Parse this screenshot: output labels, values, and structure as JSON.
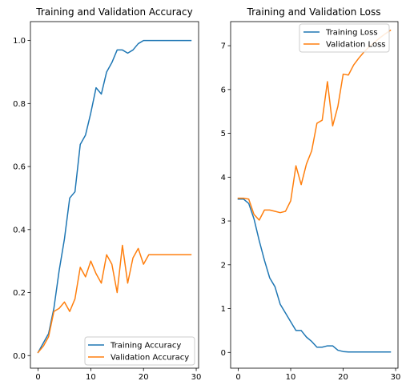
{
  "chart_data": [
    {
      "type": "line",
      "title": "Training and Validation Accuracy",
      "xlabel": "",
      "ylabel": "",
      "xlim": [
        -1.45,
        30.45
      ],
      "ylim": [
        -0.04,
        1.06
      ],
      "xticks": [
        "0",
        "10",
        "20",
        "30"
      ],
      "yticks": [
        "0.0",
        "0.2",
        "0.4",
        "0.6",
        "0.8",
        "1.0"
      ],
      "legend_position": "lower-right",
      "x": [
        0,
        1,
        2,
        3,
        4,
        5,
        6,
        7,
        8,
        9,
        10,
        11,
        12,
        13,
        14,
        15,
        16,
        17,
        18,
        19,
        20,
        21,
        22,
        23,
        24,
        25,
        26,
        27,
        28,
        29
      ],
      "series": [
        {
          "name": "Training Accuracy",
          "color": "#1f77b4",
          "values": [
            0.01,
            0.04,
            0.07,
            0.15,
            0.27,
            0.37,
            0.5,
            0.52,
            0.67,
            0.7,
            0.77,
            0.85,
            0.83,
            0.9,
            0.93,
            0.97,
            0.97,
            0.96,
            0.97,
            0.99,
            1.0,
            1.0,
            1.0,
            1.0,
            1.0,
            1.0,
            1.0,
            1.0,
            1.0,
            1.0
          ]
        },
        {
          "name": "Validation Accuracy",
          "color": "#ff7f0e",
          "values": [
            0.01,
            0.03,
            0.06,
            0.14,
            0.15,
            0.17,
            0.14,
            0.18,
            0.28,
            0.25,
            0.3,
            0.26,
            0.23,
            0.32,
            0.29,
            0.2,
            0.35,
            0.23,
            0.31,
            0.34,
            0.29,
            0.32,
            0.32,
            0.32,
            0.32,
            0.32,
            0.32,
            0.32,
            0.32,
            0.32
          ]
        }
      ]
    },
    {
      "type": "line",
      "title": "Training and Validation Loss",
      "xlabel": "",
      "ylabel": "",
      "xlim": [
        -1.45,
        30.45
      ],
      "ylim": [
        -0.36,
        7.55
      ],
      "xticks": [
        "0",
        "10",
        "20",
        "30"
      ],
      "yticks": [
        "0",
        "1",
        "2",
        "3",
        "4",
        "5",
        "6",
        "7"
      ],
      "legend_position": "upper-right",
      "x": [
        0,
        1,
        2,
        3,
        4,
        5,
        6,
        7,
        8,
        9,
        10,
        11,
        12,
        13,
        14,
        15,
        16,
        17,
        18,
        19,
        20,
        21,
        22,
        23,
        24,
        25,
        26,
        27,
        28,
        29
      ],
      "series": [
        {
          "name": "Training Loss",
          "color": "#1f77b4",
          "values": [
            3.5,
            3.5,
            3.4,
            3.05,
            2.55,
            2.1,
            1.7,
            1.5,
            1.1,
            0.9,
            0.7,
            0.5,
            0.5,
            0.35,
            0.25,
            0.12,
            0.12,
            0.15,
            0.15,
            0.05,
            0.02,
            0.01,
            0.01,
            0.01,
            0.01,
            0.01,
            0.01,
            0.01,
            0.01,
            0.01
          ]
        },
        {
          "name": "Validation Loss",
          "color": "#ff7f0e",
          "values": [
            3.52,
            3.52,
            3.5,
            3.15,
            3.02,
            3.25,
            3.25,
            3.22,
            3.19,
            3.22,
            3.46,
            4.26,
            3.83,
            4.3,
            4.6,
            5.23,
            5.3,
            6.18,
            5.17,
            5.62,
            6.35,
            6.33,
            6.56,
            6.72,
            6.86,
            6.98,
            7.08,
            7.18,
            7.27,
            7.35
          ]
        }
      ]
    }
  ]
}
